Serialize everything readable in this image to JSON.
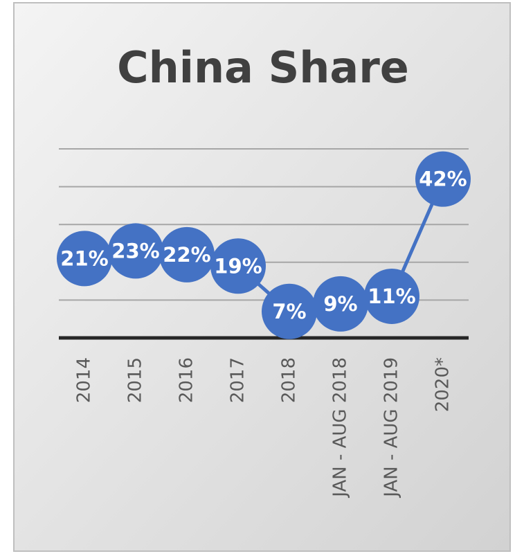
{
  "chart_data": {
    "type": "line",
    "title": "China Share",
    "categories": [
      "2014",
      "2015",
      "2016",
      "2017",
      "2018",
      "JAN - AUG 2018",
      "JAN - AUG 2019",
      "2020*"
    ],
    "values": [
      21,
      23,
      22,
      19,
      7,
      9,
      11,
      42
    ],
    "value_labels": [
      "21%",
      "23%",
      "22%",
      "19%",
      "7%",
      "9%",
      "11%",
      "42%"
    ],
    "color": "#4472c4",
    "ylim": [
      0,
      50
    ],
    "yticks": [
      0,
      10,
      20,
      30,
      40,
      50
    ],
    "grid": true
  }
}
